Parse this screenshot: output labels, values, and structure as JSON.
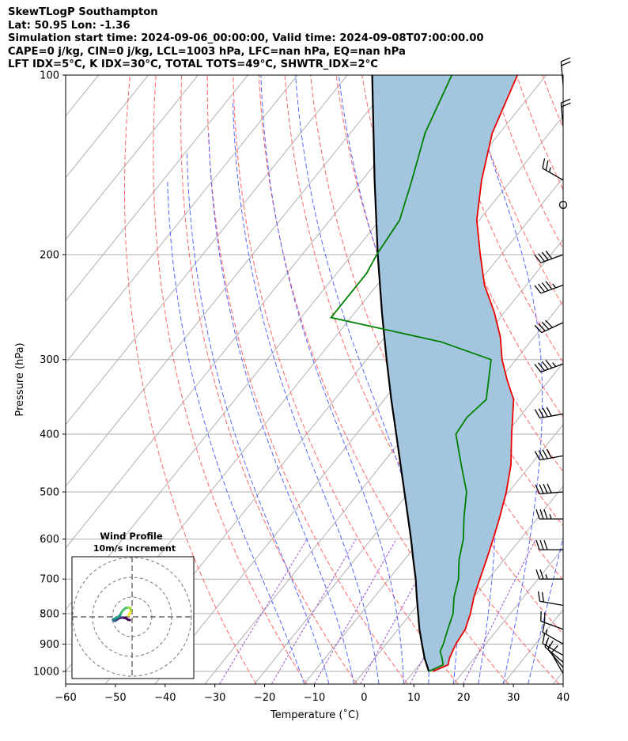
{
  "header": {
    "title": "SkewTLogP Southampton",
    "location": "Lat: 50.95   Lon: -1.36",
    "times": "Simulation start time: 2024-09-06_00:00:00, Valid time: 2024-09-08T07:00:00.00",
    "parcel": "CAPE=0 j/kg, CIN=0 j/kg, LCL=1003 hPa, LFC=nan hPa, EQ=nan hPa",
    "indices": "LFT IDX=5°C, K IDX=30°C, TOTAL TOTS=49°C, SHWTR_IDX=2°C"
  },
  "colors": {
    "temperature": "#ee0000",
    "dewpoint": "#008000",
    "parcel": "#000000",
    "shading": "#a3c6de",
    "dry_adiabats": "#ff6666",
    "moist_adiabats": "#5566ff",
    "mixing_ratio": "#9955cc",
    "isotherms": "#b0b0b0",
    "grid": "#b0b0b0"
  },
  "chart_data": [
    {
      "type": "line",
      "subtype": "skew-T log-P diagram",
      "xlabel": "Temperature (˚C)",
      "ylabel": "Pressure (hPa)",
      "xlim": [
        -60,
        40
      ],
      "ylim": [
        1050,
        100
      ],
      "y_scale": "log",
      "x_ticks": [
        -60,
        -50,
        -40,
        -30,
        -20,
        -10,
        0,
        10,
        20,
        30,
        40
      ],
      "y_ticks": [
        100,
        200,
        300,
        400,
        500,
        600,
        700,
        800,
        900,
        1000
      ],
      "grid": true,
      "series": [
        {
          "role": "temperature",
          "points": [
            [
              1000,
              13.8
            ],
            [
              975,
              15.8
            ],
            [
              950,
              15.0
            ],
            [
              925,
              14.5
            ],
            [
              900,
              14.0
            ],
            [
              850,
              13.5
            ],
            [
              800,
              12.0
            ],
            [
              750,
              10.0
            ],
            [
              700,
              8.3
            ],
            [
              650,
              6.5
            ],
            [
              600,
              4.5
            ],
            [
              550,
              2.2
            ],
            [
              500,
              -0.5
            ],
            [
              450,
              -4.0
            ],
            [
              400,
              -8.8
            ],
            [
              350,
              -14.0
            ],
            [
              325,
              -18.4
            ],
            [
              300,
              -22.8
            ],
            [
              275,
              -26.8
            ],
            [
              250,
              -32.0
            ],
            [
              225,
              -38.4
            ],
            [
              200,
              -44.2
            ],
            [
              175,
              -50.5
            ],
            [
              150,
              -56.0
            ],
            [
              125,
              -61.5
            ],
            [
              100,
              -65.8
            ]
          ]
        },
        {
          "role": "dewpoint",
          "points": [
            [
              1000,
              13.0
            ],
            [
              975,
              14.8
            ],
            [
              950,
              13.5
            ],
            [
              925,
              12.0
            ],
            [
              900,
              11.5
            ],
            [
              850,
              10.0
            ],
            [
              800,
              8.5
            ],
            [
              750,
              6.0
            ],
            [
              700,
              4.0
            ],
            [
              650,
              1.0
            ],
            [
              600,
              -1.5
            ],
            [
              550,
              -5.0
            ],
            [
              500,
              -8.5
            ],
            [
              450,
              -14.0
            ],
            [
              400,
              -20.0
            ],
            [
              375,
              -20.5
            ],
            [
              350,
              -19.5
            ],
            [
              300,
              -25.0
            ],
            [
              280,
              -38.0
            ],
            [
              255,
              -64.0
            ],
            [
              215,
              -64.0
            ],
            [
              200,
              -65.0
            ],
            [
              175,
              -66.0
            ],
            [
              150,
              -70.0
            ],
            [
              125,
              -75.0
            ],
            [
              100,
              -79.0
            ]
          ]
        },
        {
          "role": "parcel",
          "points": [
            [
              1000,
              13.0
            ],
            [
              950,
              10.0
            ],
            [
              900,
              7.2
            ],
            [
              850,
              4.3
            ],
            [
              800,
              1.5
            ],
            [
              750,
              -1.5
            ],
            [
              700,
              -4.6
            ],
            [
              650,
              -8.2
            ],
            [
              600,
              -12.0
            ],
            [
              550,
              -16.3
            ],
            [
              500,
              -21.0
            ],
            [
              450,
              -26.2
            ],
            [
              400,
              -32.0
            ],
            [
              350,
              -38.6
            ],
            [
              300,
              -46.0
            ],
            [
              250,
              -54.6
            ],
            [
              200,
              -64.8
            ],
            [
              150,
              -77.5
            ],
            [
              100,
              -95.0
            ]
          ]
        }
      ],
      "wind_barbs": {
        "pressures": [
          1008,
          985,
          965,
          940,
          900,
          850,
          775,
          700,
          625,
          555,
          500,
          435,
          370,
          305,
          260,
          225,
          200,
          165,
          150,
          122,
          104
        ],
        "speed_kt": [
          10,
          10,
          15,
          15,
          15,
          20,
          20,
          25,
          30,
          35,
          40,
          40,
          40,
          45,
          40,
          45,
          40,
          0,
          25,
          20,
          20
        ],
        "direction_deg": [
          330,
          320,
          310,
          300,
          300,
          290,
          280,
          270,
          270,
          270,
          265,
          260,
          260,
          250,
          245,
          250,
          250,
          0,
          300,
          355,
          355
        ]
      }
    },
    {
      "type": "line",
      "subtype": "hodograph",
      "title": "Wind Profile",
      "subtitle": "10m/s increment",
      "rings_ms": [
        10,
        20,
        30
      ],
      "colormap": "viridis",
      "points": [
        [
          2.0,
          3.0
        ],
        [
          3.6,
          2.7
        ],
        [
          5.6,
          1.3
        ],
        [
          9.0,
          0.6
        ],
        [
          12.6,
          1.6
        ],
        [
          14.0,
          2.6
        ],
        [
          15.0,
          3.5
        ],
        [
          16.2,
          3.5
        ],
        [
          17.2,
          3.2
        ],
        [
          17.6,
          2.6
        ],
        [
          16.8,
          2.2
        ],
        [
          15.0,
          1.2
        ],
        [
          13.0,
          0.2
        ],
        [
          11.0,
          -1.5
        ],
        [
          9.8,
          -4.0
        ],
        [
          8.0,
          -6.4
        ],
        [
          6.0,
          -8.0
        ],
        [
          3.6,
          -8.6
        ],
        [
          1.6,
          -8.0
        ],
        [
          1.0,
          -6.0
        ],
        [
          1.6,
          -4.0
        ],
        [
          2.6,
          -2.4
        ],
        [
          3.4,
          -1.2
        ]
      ]
    }
  ]
}
